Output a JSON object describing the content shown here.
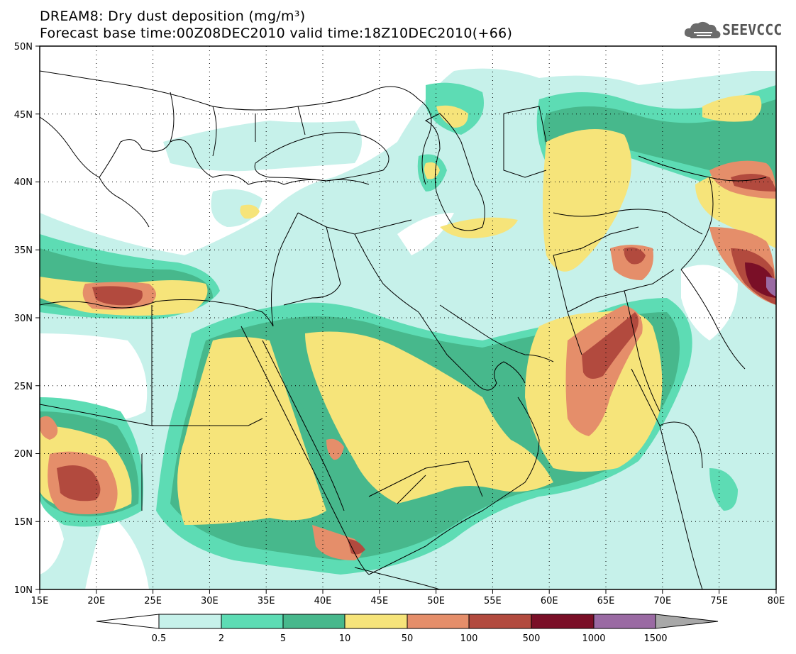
{
  "header": {
    "title": "DREAM8: Dry dust deposition (mg/m³)",
    "subtitle": "Forecast base time:00Z08DEC2010 valid time:18Z10DEC2010(+66)",
    "logo_text": "SEEVCCC"
  },
  "map": {
    "lon_range": [
      15,
      80
    ],
    "lat_range": [
      10,
      50
    ],
    "lon_ticks": [
      "15E",
      "20E",
      "25E",
      "30E",
      "35E",
      "40E",
      "45E",
      "50E",
      "55E",
      "60E",
      "65E",
      "70E",
      "75E",
      "80E"
    ],
    "lat_ticks": [
      "10N",
      "15N",
      "20N",
      "25N",
      "30N",
      "35N",
      "40N",
      "45N",
      "50N"
    ],
    "gridlines": "dotted"
  },
  "colorbar": {
    "levels": [
      "0.5",
      "2",
      "5",
      "10",
      "50",
      "100",
      "500",
      "1000",
      "1500"
    ],
    "colors": [
      "#c6f1ea",
      "#5ddcb4",
      "#47b88c",
      "#f6e47a",
      "#e58e6a",
      "#b24a3e",
      "#7a0f27",
      "#9a6aa3"
    ],
    "under_color": "#ffffff",
    "over_color": "#a8a8a8"
  }
}
